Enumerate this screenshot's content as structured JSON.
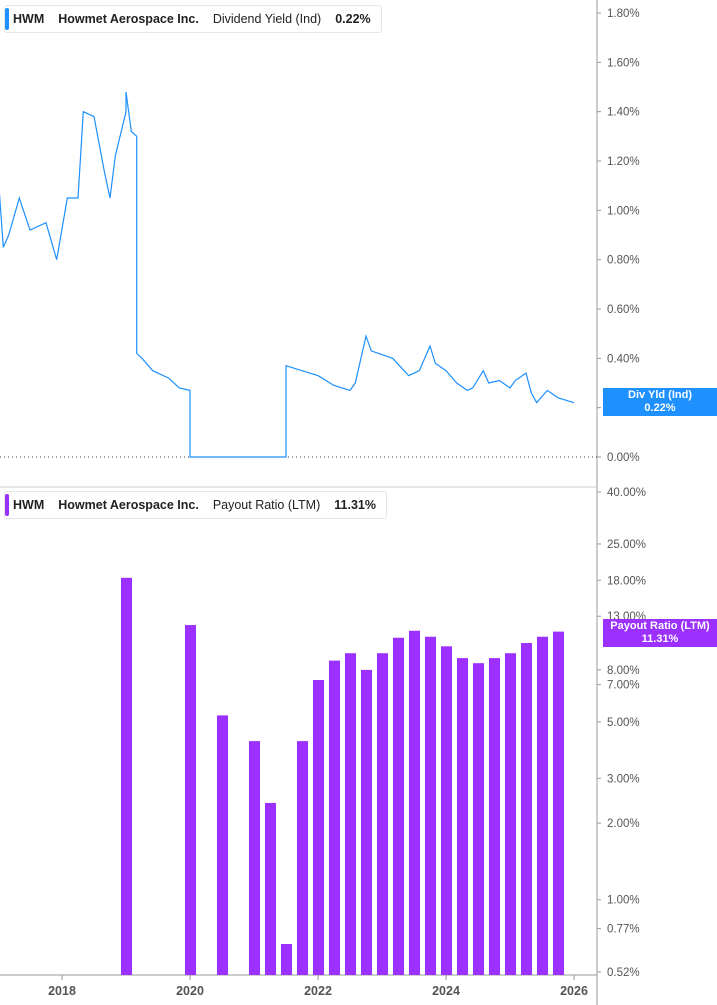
{
  "colors": {
    "yield": "#1e90ff",
    "payout": "#9b30ff",
    "axis": "#999999",
    "text": "#555555"
  },
  "top_legend": {
    "ticker": "HWM",
    "company": "Howmet Aerospace Inc.",
    "metric": "Dividend Yield (Ind)",
    "value": "0.22%"
  },
  "bottom_legend": {
    "ticker": "HWM",
    "company": "Howmet Aerospace Inc.",
    "metric": "Payout Ratio (LTM)",
    "value": "11.31%"
  },
  "top_tag": {
    "label": "Div Yld (Ind)",
    "value": "0.22%"
  },
  "bottom_tag": {
    "label": "Payout Ratio (LTM)",
    "value": "11.31%"
  },
  "chart_data": [
    {
      "type": "line",
      "series_label": "Dividend Yield (Ind)",
      "yscale": "linear",
      "ylim": [
        0,
        1.8
      ],
      "yunit": "%",
      "yticks": [
        "0.00%",
        "0.20%",
        "0.40%",
        "0.60%",
        "0.80%",
        "1.00%",
        "1.20%",
        "1.40%",
        "1.60%",
        "1.80%"
      ],
      "points": [
        [
          "2017-01",
          1.15
        ],
        [
          "2017-02",
          0.85
        ],
        [
          "2017-03",
          0.9
        ],
        [
          "2017-05",
          1.05
        ],
        [
          "2017-07",
          0.92
        ],
        [
          "2017-10",
          0.95
        ],
        [
          "2017-12",
          0.8
        ],
        [
          "2018-02",
          1.05
        ],
        [
          "2018-04",
          1.05
        ],
        [
          "2018-05",
          1.4
        ],
        [
          "2018-07",
          1.38
        ],
        [
          "2018-09",
          1.15
        ],
        [
          "2018-10",
          1.05
        ],
        [
          "2018-11",
          1.22
        ],
        [
          "2019-01",
          1.4
        ],
        [
          "2019-01",
          1.48
        ],
        [
          "2019-02",
          1.32
        ],
        [
          "2019-03",
          1.3
        ],
        [
          "2019-03",
          0.42
        ],
        [
          "2019-04",
          0.4
        ],
        [
          "2019-06",
          0.35
        ],
        [
          "2019-09",
          0.32
        ],
        [
          "2019-11",
          0.28
        ],
        [
          "2020-01",
          0.27
        ],
        [
          "2020-01",
          0.0
        ],
        [
          "2021-07",
          0.0
        ],
        [
          "2021-07",
          0.37
        ],
        [
          "2021-10",
          0.35
        ],
        [
          "2022-01",
          0.33
        ],
        [
          "2022-04",
          0.29
        ],
        [
          "2022-07",
          0.27
        ],
        [
          "2022-08",
          0.3
        ],
        [
          "2022-10",
          0.49
        ],
        [
          "2022-11",
          0.43
        ],
        [
          "2023-03",
          0.4
        ],
        [
          "2023-06",
          0.33
        ],
        [
          "2023-08",
          0.35
        ],
        [
          "2023-10",
          0.45
        ],
        [
          "2023-11",
          0.38
        ],
        [
          "2024-01",
          0.35
        ],
        [
          "2024-03",
          0.3
        ],
        [
          "2024-05",
          0.27
        ],
        [
          "2024-06",
          0.28
        ],
        [
          "2024-08",
          0.35
        ],
        [
          "2024-09",
          0.3
        ],
        [
          "2024-11",
          0.31
        ],
        [
          "2025-01",
          0.28
        ],
        [
          "2025-02",
          0.31
        ],
        [
          "2025-04",
          0.34
        ],
        [
          "2025-05",
          0.26
        ],
        [
          "2025-06",
          0.22
        ],
        [
          "2025-08",
          0.27
        ],
        [
          "2025-10",
          0.24
        ],
        [
          "2026-01",
          0.22
        ]
      ]
    },
    {
      "type": "bar",
      "series_label": "Payout Ratio (LTM)",
      "yscale": "log",
      "ylim": [
        0.52,
        40
      ],
      "yunit": "%",
      "yticks": [
        [
          "40.00%",
          40
        ],
        [
          "25.00%",
          25
        ],
        [
          "18.00%",
          18
        ],
        [
          "13.00%",
          13
        ],
        [
          "8.00%",
          8
        ],
        [
          "7.00%",
          7
        ],
        [
          "5.00%",
          5
        ],
        [
          "3.00%",
          3
        ],
        [
          "2.00%",
          2
        ],
        [
          "1.00%",
          1
        ],
        [
          "0.77%",
          0.77
        ],
        [
          "0.52%",
          0.52
        ]
      ],
      "xticks": [
        "2018",
        "2020",
        "2022",
        "2024",
        "2026"
      ],
      "categories": [
        "2019-01",
        "2020-01",
        "2020-07",
        "2021-01",
        "2021-04",
        "2021-07",
        "2021-10",
        "2022-01",
        "2022-04",
        "2022-07",
        "2022-10",
        "2023-01",
        "2023-04",
        "2023-07",
        "2023-10",
        "2024-01",
        "2024-04",
        "2024-07",
        "2024-10",
        "2025-01",
        "2025-04",
        "2025-07",
        "2025-10"
      ],
      "values": [
        18.4,
        12.0,
        5.3,
        4.2,
        2.4,
        0.67,
        4.2,
        7.3,
        8.7,
        9.3,
        8.0,
        9.3,
        10.7,
        11.4,
        10.8,
        9.9,
        8.9,
        8.5,
        8.9,
        9.3,
        10.2,
        10.8,
        11.31
      ]
    }
  ]
}
